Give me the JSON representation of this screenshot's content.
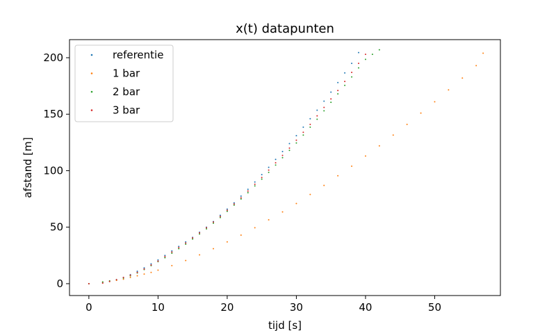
{
  "chart_data": {
    "type": "scatter",
    "title": "x(t) datapunten",
    "xlabel": "tijd [s]",
    "ylabel": "afstand [m]",
    "xlim": [
      -2.8,
      59.5
    ],
    "ylim": [
      -10.5,
      216
    ],
    "xticks": [
      0,
      10,
      20,
      30,
      40,
      50
    ],
    "yticks": [
      0,
      50,
      100,
      150,
      200
    ],
    "grid": false,
    "legend_position": "upper-left",
    "series": [
      {
        "name": "referentie",
        "color": "#1f77b4",
        "points": [
          [
            0,
            0
          ],
          [
            2,
            1
          ],
          [
            3,
            2
          ],
          [
            4,
            3.5
          ],
          [
            5,
            5.5
          ],
          [
            6,
            8
          ],
          [
            7,
            11
          ],
          [
            8,
            14
          ],
          [
            9,
            17.5
          ],
          [
            10,
            21
          ],
          [
            11,
            25
          ],
          [
            12,
            29
          ],
          [
            13,
            33
          ],
          [
            14,
            37
          ],
          [
            15,
            41
          ],
          [
            16,
            45.5
          ],
          [
            17,
            50
          ],
          [
            18,
            55
          ],
          [
            19,
            60.5
          ],
          [
            20,
            66
          ],
          [
            21,
            71.5
          ],
          [
            22,
            77.5
          ],
          [
            23,
            83.5
          ],
          [
            24,
            90
          ],
          [
            25,
            96.5
          ],
          [
            26,
            103
          ],
          [
            27,
            110
          ],
          [
            28,
            117
          ],
          [
            29,
            124
          ],
          [
            30,
            131
          ],
          [
            31,
            138.5
          ],
          [
            32,
            146
          ],
          [
            33,
            153.5
          ],
          [
            34,
            161.5
          ],
          [
            35,
            169.5
          ],
          [
            36,
            178
          ],
          [
            37,
            186.5
          ],
          [
            38,
            195
          ],
          [
            39,
            204.5
          ]
        ]
      },
      {
        "name": "1 bar",
        "color": "#ff7f0e",
        "points": [
          [
            0,
            0
          ],
          [
            2,
            1.5
          ],
          [
            3,
            2
          ],
          [
            4,
            3
          ],
          [
            5,
            4
          ],
          [
            6,
            5.5
          ],
          [
            7,
            7
          ],
          [
            8,
            8.5
          ],
          [
            9,
            10
          ],
          [
            10,
            12
          ],
          [
            12,
            16
          ],
          [
            14,
            20.5
          ],
          [
            16,
            25.5
          ],
          [
            18,
            31
          ],
          [
            20,
            37
          ],
          [
            22,
            43
          ],
          [
            24,
            49.5
          ],
          [
            26,
            56.5
          ],
          [
            28,
            63.5
          ],
          [
            30,
            71
          ],
          [
            32,
            79
          ],
          [
            34,
            87
          ],
          [
            36,
            95.5
          ],
          [
            38,
            104
          ],
          [
            40,
            113
          ],
          [
            42,
            122
          ],
          [
            44,
            131.5
          ],
          [
            46,
            141
          ],
          [
            48,
            151
          ],
          [
            50,
            161
          ],
          [
            52,
            171.5
          ],
          [
            54,
            182
          ],
          [
            56,
            193
          ],
          [
            57,
            204
          ]
        ]
      },
      {
        "name": "2 bar",
        "color": "#2ca02c",
        "points": [
          [
            0,
            0
          ],
          [
            2,
            1.5
          ],
          [
            3,
            2.5
          ],
          [
            4,
            3.5
          ],
          [
            5,
            5
          ],
          [
            6,
            7
          ],
          [
            7,
            9.5
          ],
          [
            8,
            12.5
          ],
          [
            9,
            16
          ],
          [
            10,
            19.5
          ],
          [
            11,
            23
          ],
          [
            12,
            27
          ],
          [
            13,
            31
          ],
          [
            14,
            35
          ],
          [
            15,
            39.5
          ],
          [
            16,
            44
          ],
          [
            17,
            48.5
          ],
          [
            18,
            53.5
          ],
          [
            19,
            58.5
          ],
          [
            20,
            64
          ],
          [
            21,
            69.5
          ],
          [
            22,
            75
          ],
          [
            23,
            80.5
          ],
          [
            24,
            86.5
          ],
          [
            25,
            92.5
          ],
          [
            26,
            98.5
          ],
          [
            27,
            105
          ],
          [
            28,
            111.5
          ],
          [
            29,
            118
          ],
          [
            30,
            124.5
          ],
          [
            31,
            131.5
          ],
          [
            32,
            138.5
          ],
          [
            33,
            145.5
          ],
          [
            34,
            153
          ],
          [
            35,
            160.5
          ],
          [
            36,
            168
          ],
          [
            37,
            175.5
          ],
          [
            38,
            183
          ],
          [
            39,
            191
          ],
          [
            40,
            198.5
          ],
          [
            41,
            203
          ],
          [
            42,
            207
          ]
        ]
      },
      {
        "name": "3 bar",
        "color": "#d62728",
        "points": [
          [
            0,
            0
          ],
          [
            2,
            0.5
          ],
          [
            3,
            2
          ],
          [
            4,
            3.5
          ],
          [
            5,
            5.5
          ],
          [
            6,
            7.5
          ],
          [
            7,
            10
          ],
          [
            8,
            13
          ],
          [
            9,
            16.5
          ],
          [
            10,
            20
          ],
          [
            11,
            24
          ],
          [
            12,
            28
          ],
          [
            13,
            32
          ],
          [
            14,
            36
          ],
          [
            15,
            40.5
          ],
          [
            16,
            45
          ],
          [
            17,
            49.5
          ],
          [
            18,
            54.5
          ],
          [
            19,
            59.5
          ],
          [
            20,
            65
          ],
          [
            21,
            70.5
          ],
          [
            22,
            76
          ],
          [
            23,
            82
          ],
          [
            24,
            88
          ],
          [
            25,
            94
          ],
          [
            26,
            100.5
          ],
          [
            27,
            107
          ],
          [
            28,
            113.5
          ],
          [
            29,
            120
          ],
          [
            30,
            127
          ],
          [
            31,
            134
          ],
          [
            32,
            141
          ],
          [
            33,
            148.5
          ],
          [
            34,
            156
          ],
          [
            35,
            163.5
          ],
          [
            36,
            171
          ],
          [
            37,
            179
          ],
          [
            38,
            187
          ],
          [
            39,
            195
          ],
          [
            40,
            203
          ]
        ]
      }
    ]
  }
}
